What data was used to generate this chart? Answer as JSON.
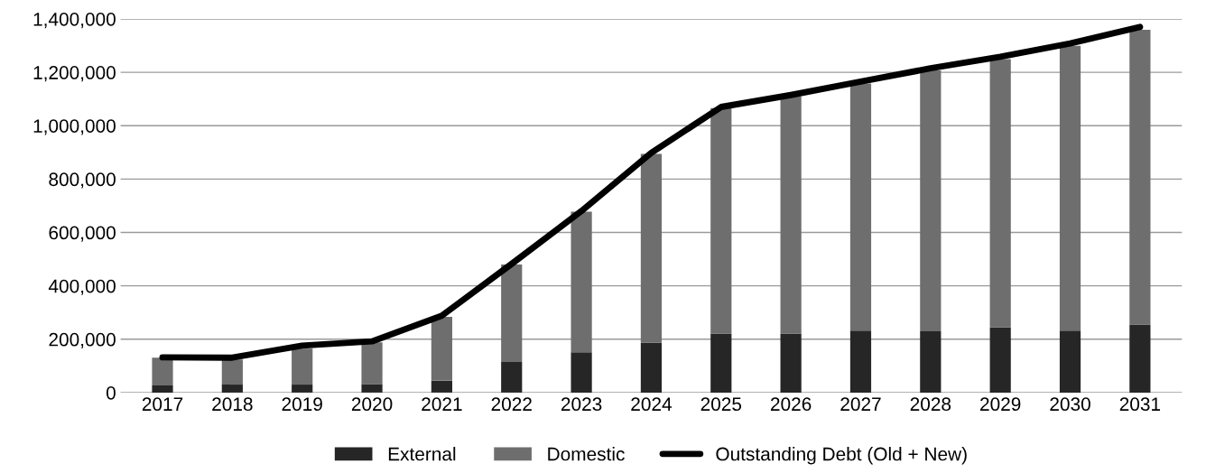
{
  "chart_data": {
    "type": "bar",
    "stacked": true,
    "categories": [
      "2017",
      "2018",
      "2019",
      "2020",
      "2021",
      "2022",
      "2023",
      "2024",
      "2025",
      "2026",
      "2027",
      "2028",
      "2029",
      "2030",
      "2031"
    ],
    "series": [
      {
        "name": "External",
        "color": "#262626",
        "values": [
          27000,
          30000,
          30000,
          32000,
          45000,
          115000,
          151000,
          187000,
          221000,
          221000,
          232000,
          230000,
          244000,
          232000,
          255000
        ]
      },
      {
        "name": "Domestic",
        "color": "#6e6e6e",
        "values": [
          104000,
          94000,
          135000,
          156000,
          239000,
          365000,
          527000,
          707000,
          845000,
          889000,
          926000,
          977000,
          1005000,
          1067000,
          1104000
        ]
      },
      {
        "name": "Outstanding Debt (Old + New)",
        "type": "line",
        "color": "#000000",
        "values": [
          132000,
          131000,
          176000,
          192000,
          288000,
          482000,
          680000,
          898000,
          1070000,
          1115000,
          1165000,
          1215000,
          1258000,
          1308000,
          1370000
        ]
      }
    ],
    "ylim": [
      0,
      1400000
    ],
    "yticks": [
      {
        "value": 0,
        "label": "0"
      },
      {
        "value": 200000,
        "label": "200,000"
      },
      {
        "value": 400000,
        "label": "400,000"
      },
      {
        "value": 600000,
        "label": "600,000"
      },
      {
        "value": 800000,
        "label": "800,000"
      },
      {
        "value": 1000000,
        "label": "1,000,000"
      },
      {
        "value": 1200000,
        "label": "1,200,000"
      },
      {
        "value": 1400000,
        "label": "1,400,000"
      }
    ],
    "grid": "y",
    "legend": "bottom"
  }
}
